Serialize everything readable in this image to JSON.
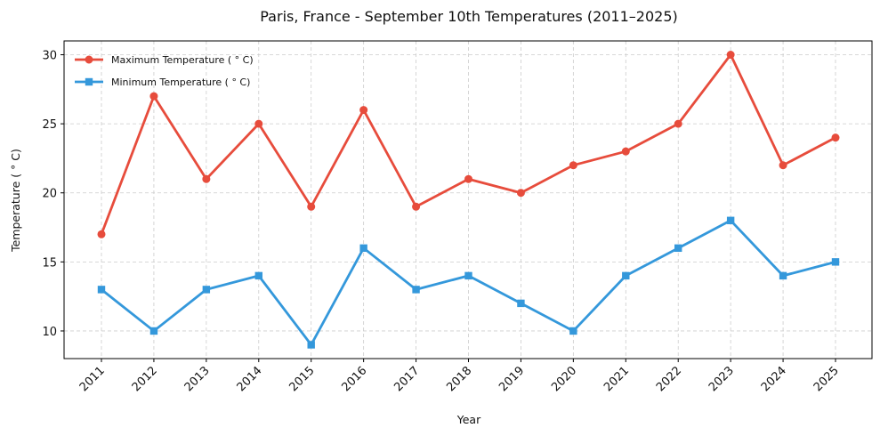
{
  "chart_data": {
    "type": "line",
    "title": "Paris, France - September 10th Temperatures (2011–2025)",
    "xlabel": "Year",
    "ylabel": "Temperature ( ° C)",
    "categories": [
      "2011",
      "2012",
      "2013",
      "2014",
      "2015",
      "2016",
      "2017",
      "2018",
      "2019",
      "2020",
      "2021",
      "2022",
      "2023",
      "2024",
      "2025"
    ],
    "series": [
      {
        "name": "Maximum Temperature ( ° C)",
        "color": "#e74c3c",
        "marker": "circle",
        "values": [
          17,
          27,
          21,
          25,
          19,
          26,
          19,
          21,
          20,
          22,
          23,
          25,
          30,
          22,
          24
        ]
      },
      {
        "name": "Minimum Temperature ( ° C)",
        "color": "#3498db",
        "marker": "square",
        "values": [
          13,
          10,
          13,
          14,
          9,
          16,
          13,
          14,
          12,
          10,
          14,
          16,
          18,
          14,
          15
        ]
      }
    ],
    "ylim": [
      8,
      31
    ],
    "yticks": [
      10,
      15,
      20,
      25,
      30
    ],
    "grid": true,
    "legend_position": "top-left"
  }
}
